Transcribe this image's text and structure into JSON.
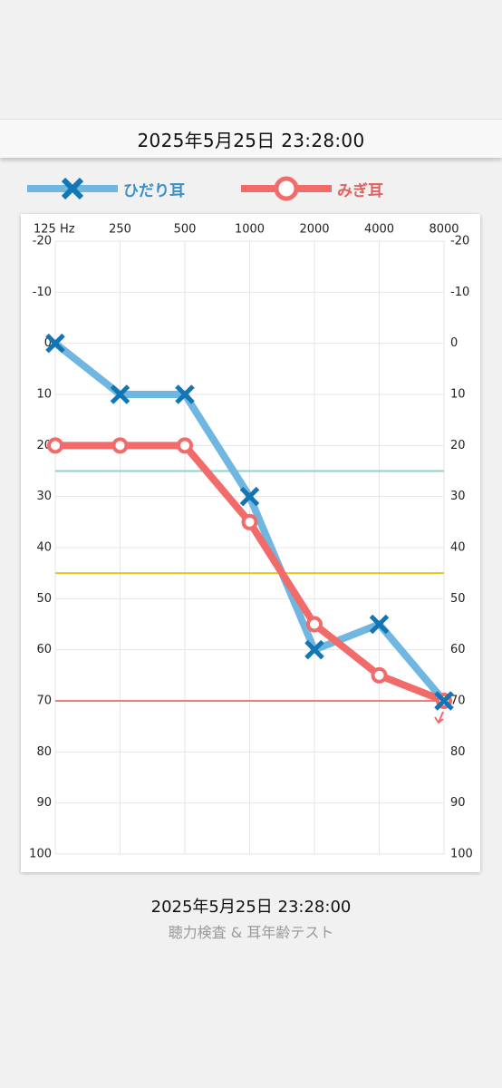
{
  "header": {
    "datetime": "2025年5月25日 23:28:00"
  },
  "legend": {
    "left": {
      "label": "ひだり耳",
      "icon": "cross-marker-icon",
      "color": "#6fb6e0",
      "marker_color": "#1276b4"
    },
    "right": {
      "label": "みぎ耳",
      "icon": "circle-marker-icon",
      "color": "#f26b6b"
    }
  },
  "chart_data": {
    "type": "line",
    "title": "",
    "xlabel": "",
    "ylabel": "",
    "x_unit": "Hz",
    "x_tick_labels": [
      "125 Hz",
      "250",
      "500",
      "1000",
      "2000",
      "4000",
      "8000"
    ],
    "categories": [
      125,
      250,
      500,
      1000,
      2000,
      4000,
      8000
    ],
    "y_ticks": [
      -20,
      -10,
      0,
      10,
      20,
      30,
      40,
      50,
      60,
      70,
      80,
      90,
      100
    ],
    "ylim": [
      -20,
      100
    ],
    "y_inverted": true,
    "grid": true,
    "series": [
      {
        "name": "ひだり耳",
        "values": [
          0,
          10,
          10,
          30,
          60,
          55,
          70
        ],
        "color": "#6fb6e0",
        "marker": "x",
        "marker_color": "#1276b4"
      },
      {
        "name": "みぎ耳",
        "values": [
          20,
          20,
          20,
          35,
          55,
          65,
          70
        ],
        "color": "#f26b6b",
        "marker": "o"
      }
    ],
    "reference_lines": [
      {
        "y": 25,
        "color": "#8fd3c8"
      },
      {
        "y": 45,
        "color": "#e8c51c"
      },
      {
        "y": 70,
        "color": "#f07b78"
      }
    ]
  },
  "footer": {
    "datetime": "2025年5月25日 23:28:00",
    "app_name": "聴力検査 & 耳年齢テスト"
  }
}
